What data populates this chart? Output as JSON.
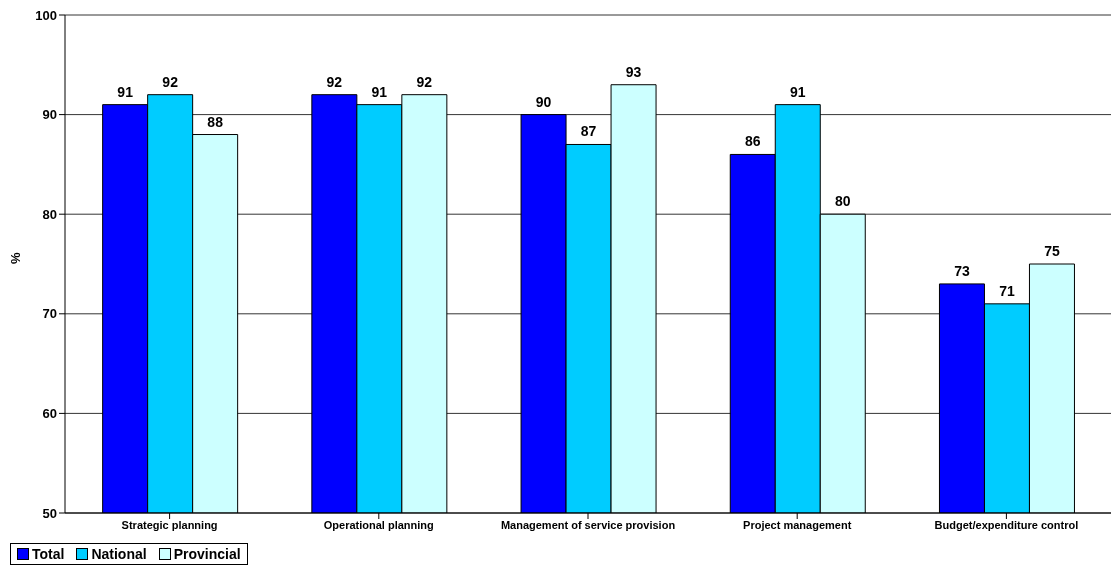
{
  "chart_data": {
    "type": "bar",
    "ylabel": "%",
    "categories": [
      "Strategic planning",
      "Operational planning",
      "Management of service provision",
      "Project management",
      "Budget/expenditure control"
    ],
    "series": [
      {
        "name": "Total",
        "color": "#0000ff",
        "values": [
          91,
          92,
          90,
          86,
          73
        ]
      },
      {
        "name": "National",
        "color": "#00ccff",
        "values": [
          92,
          91,
          87,
          91,
          71
        ]
      },
      {
        "name": "Provincial",
        "color": "#ccffff",
        "values": [
          88,
          92,
          93,
          80,
          75
        ]
      }
    ],
    "ylim": [
      50,
      100
    ],
    "yticks": [
      50,
      60,
      70,
      80,
      90,
      100
    ],
    "grid": "y",
    "legend": "bottom",
    "data_labels": true
  }
}
